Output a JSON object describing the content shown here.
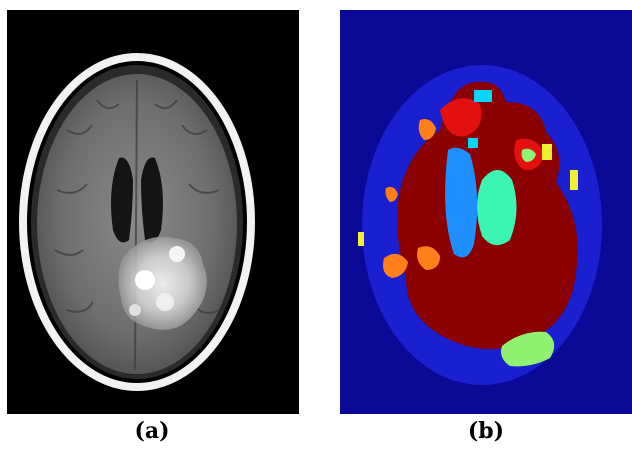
{
  "figure": {
    "panels": [
      {
        "id": "a",
        "caption": "(a)",
        "content": "brain-mri-axial-slice"
      },
      {
        "id": "b",
        "caption": "(b)",
        "content": "segmentation-label-map"
      }
    ],
    "colors": {
      "mri_background": "#000000",
      "skull_ring": "#f2f2f2",
      "brain_tissue": "#7a7a7a",
      "ventricle": "#141414",
      "lesion": "#e6e6e6",
      "seg_background": "#0a0a96",
      "seg_head": "#1a1fcf",
      "seg_dark_red": "#8b0000",
      "seg_red": "#e41010",
      "seg_light_blue": "#1f8fff",
      "seg_cyan": "#00d8ff",
      "seg_aquamarine": "#3cf5b4",
      "seg_orange": "#ff7f1a",
      "seg_yellow": "#f0f030",
      "seg_lime": "#8ff270"
    }
  }
}
